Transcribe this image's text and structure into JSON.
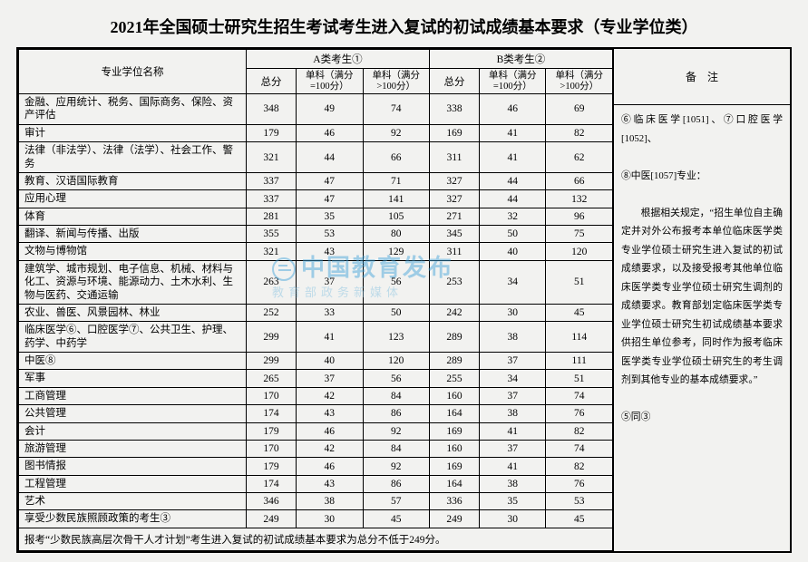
{
  "title": "2021年全国硕士研究生招生考试考生进入复试的初试成绩基本要求（专业学位类）",
  "header": {
    "col_major": "专业学位名称",
    "groupA": "A类考生①",
    "groupB": "B类考生②",
    "total": "总分",
    "sub100": "单科（满分=100分）",
    "subOver100": "单科（满分>100分）",
    "remark": "备　注"
  },
  "rows": [
    {
      "name": "金融、应用统计、税务、国际商务、保险、资产评估",
      "a": [
        348,
        49,
        74
      ],
      "b": [
        338,
        46,
        69
      ]
    },
    {
      "name": "审计",
      "a": [
        179,
        46,
        92
      ],
      "b": [
        169,
        41,
        82
      ]
    },
    {
      "name": "法律（非法学）、法律（法学）、社会工作、警务",
      "a": [
        321,
        44,
        66
      ],
      "b": [
        311,
        41,
        62
      ]
    },
    {
      "name": "教育、汉语国际教育",
      "a": [
        337,
        47,
        71
      ],
      "b": [
        327,
        44,
        66
      ]
    },
    {
      "name": "应用心理",
      "a": [
        337,
        47,
        141
      ],
      "b": [
        327,
        44,
        132
      ]
    },
    {
      "name": "体育",
      "a": [
        281,
        35,
        105
      ],
      "b": [
        271,
        32,
        96
      ]
    },
    {
      "name": "翻译、新闻与传播、出版",
      "a": [
        355,
        53,
        80
      ],
      "b": [
        345,
        50,
        75
      ]
    },
    {
      "name": "文物与博物馆",
      "a": [
        321,
        43,
        129
      ],
      "b": [
        311,
        40,
        120
      ]
    },
    {
      "name": "建筑学、城市规划、电子信息、机械、材料与化工、资源与环境、能源动力、土木水利、生物与医药、交通运输",
      "a": [
        263,
        37,
        56
      ],
      "b": [
        253,
        34,
        51
      ]
    },
    {
      "name": "农业、兽医、风景园林、林业",
      "a": [
        252,
        33,
        50
      ],
      "b": [
        242,
        30,
        45
      ]
    },
    {
      "name": "临床医学⑥、口腔医学⑦、公共卫生、护理、药学、中药学",
      "a": [
        299,
        41,
        123
      ],
      "b": [
        289,
        38,
        114
      ]
    },
    {
      "name": "中医⑧",
      "a": [
        299,
        40,
        120
      ],
      "b": [
        289,
        37,
        111
      ]
    },
    {
      "name": "军事",
      "a": [
        265,
        37,
        56
      ],
      "b": [
        255,
        34,
        51
      ]
    },
    {
      "name": "工商管理",
      "a": [
        170,
        42,
        84
      ],
      "b": [
        160,
        37,
        74
      ]
    },
    {
      "name": "公共管理",
      "a": [
        174,
        43,
        86
      ],
      "b": [
        164,
        38,
        76
      ]
    },
    {
      "name": "会计",
      "a": [
        179,
        46,
        92
      ],
      "b": [
        169,
        41,
        82
      ]
    },
    {
      "name": "旅游管理",
      "a": [
        170,
        42,
        84
      ],
      "b": [
        160,
        37,
        74
      ]
    },
    {
      "name": "图书情报",
      "a": [
        179,
        46,
        92
      ],
      "b": [
        169,
        41,
        82
      ]
    },
    {
      "name": "工程管理",
      "a": [
        174,
        43,
        86
      ],
      "b": [
        164,
        38,
        76
      ]
    },
    {
      "name": "艺术",
      "a": [
        346,
        38,
        57
      ],
      "b": [
        336,
        35,
        53
      ]
    },
    {
      "name": "享受少数民族照顾政策的考生③",
      "a": [
        249,
        30,
        45
      ],
      "b": [
        249,
        30,
        45
      ]
    }
  ],
  "footnote": "报考“少数民族高层次骨干人才计划”考生进入复试的初试成绩基本要求为总分不低于249分。",
  "notes": "⑥临床医学[1051]、⑦口腔医学[1052]、\n\n⑧中医[1057]专业：\n\n　　根据相关规定，“招生单位自主确定并对外公布报考本单位临床医学类专业学位硕士研究生进入复试的初试成绩要求，以及接受报考其他单位临床医学类专业学位硕士研究生调剂的成绩要求。教育部划定临床医学类专业学位硕士研究生初试成绩基本要求供招生单位参考，同时作为报考临床医学类专业学位硕士研究生的考生调剂到其他专业的基本成绩要求。”\n\n⑤同③",
  "watermark": {
    "l1": "中国教育发布",
    "l2": "教育部政务新媒体"
  },
  "style": {
    "border_color": "#000000",
    "bg": "#f2f2f0",
    "title_fontsize": 18,
    "body_fontsize": 11.5,
    "notes_fontsize": 10.8
  }
}
